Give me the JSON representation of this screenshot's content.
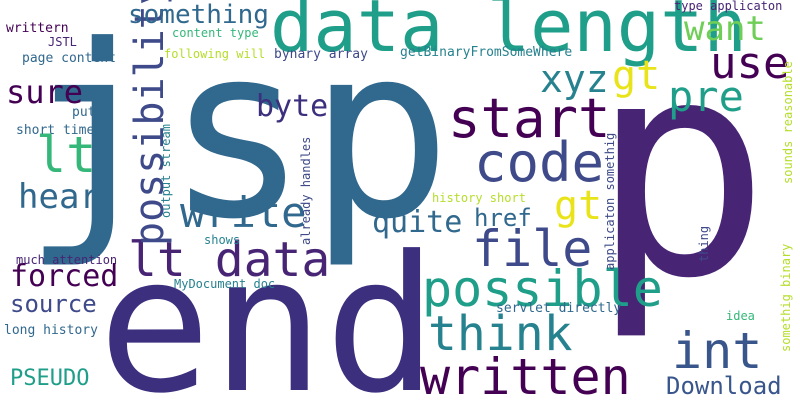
{
  "words": {
    "jsp": "jsp",
    "p": "p",
    "end": "end",
    "data_length": "data length",
    "code": "code",
    "file": "file",
    "lt_data": "lt data",
    "written": "written",
    "start": "start",
    "possible": "possible",
    "int": "int",
    "think": "think",
    "write": "write",
    "possibility": "possibility",
    "use": "use",
    "pre": "pre",
    "gt_top": "gt",
    "gt_mid": "gt",
    "xyz": "xyz",
    "lt": "lt",
    "hear": "hear",
    "want": "want",
    "sure": "sure",
    "something": "something",
    "forced": "forced",
    "source": "source",
    "quite": "quite",
    "byte": "byte",
    "href": "href",
    "download": "Download",
    "pseudo": "PSEUDO",
    "writtern": "writtern",
    "jstl": "JSTL",
    "page_content": "page content",
    "put": "put",
    "short_time": "short time",
    "content_type": "content type",
    "following_will": "following will",
    "bynary_array": "bynary array",
    "get_binary": "getBinaryFromSomeWhere",
    "type_applicaton": "type applicaton",
    "output_stream": "output stream",
    "already_handles": "already handles",
    "shows": "shows",
    "much_attention": "much attention",
    "mydocument_doc": "MyDocument doc",
    "long_history": "long history",
    "servlet_directly": "servlet directly",
    "idea": "idea",
    "history_short": "history short",
    "applicaton_somethig": "applicaton somethig",
    "thing": "thing",
    "sounds_reasonable": "sounds reasonable",
    "somethig_binary": "somethig binary"
  },
  "colors": {
    "dark_purple": "#440154",
    "indigo": "#3b2f7e",
    "blue": "#31688e",
    "slate": "#3e4a89",
    "teal": "#26828e",
    "sea": "#1f9e89",
    "green": "#35b779",
    "lime": "#6ece58",
    "yellow_green": "#b5de2b",
    "yellow": "#e8e419"
  }
}
